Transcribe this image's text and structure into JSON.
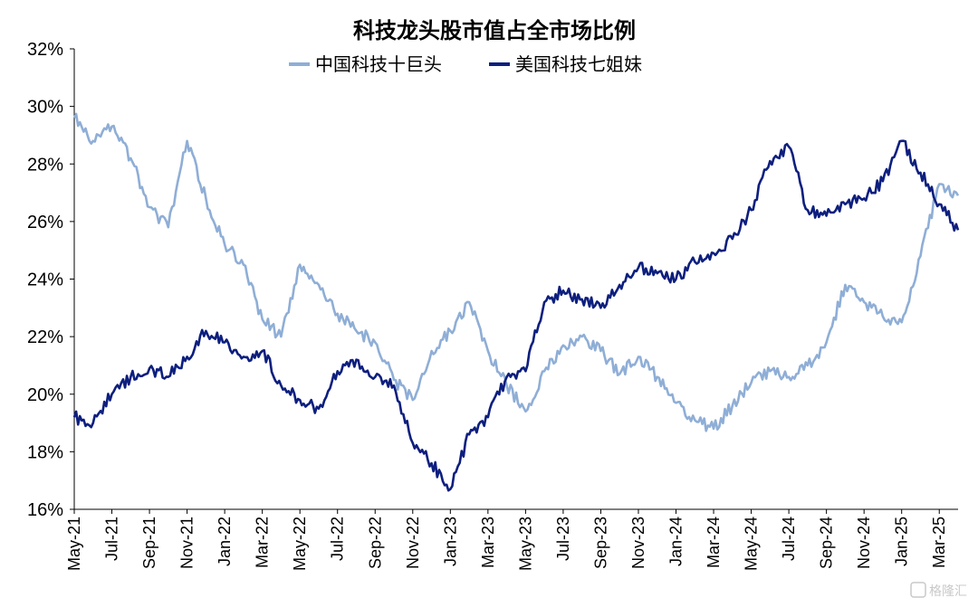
{
  "chart_data": {
    "type": "line",
    "title": "科技龙头股市值占全市场比例",
    "xlabel": "",
    "ylabel": "",
    "ylim": [
      16,
      32
    ],
    "y_ticks": [
      "16%",
      "18%",
      "20%",
      "22%",
      "24%",
      "26%",
      "28%",
      "30%",
      "32%"
    ],
    "x_ticks": [
      "May-21",
      "Jul-21",
      "Sep-21",
      "Nov-21",
      "Jan-22",
      "Mar-22",
      "May-22",
      "Jul-22",
      "Sep-22",
      "Nov-22",
      "Jan-23",
      "Mar-23",
      "May-23",
      "Jul-23",
      "Sep-23",
      "Nov-23",
      "Jan-24",
      "Mar-24",
      "May-24",
      "Jul-24",
      "Sep-24",
      "Nov-24",
      "Jan-25",
      "Mar-25"
    ],
    "x_start": "May-21",
    "x_end": "Apr-25",
    "legend_position": "top",
    "grid": false,
    "series": [
      {
        "name": "中国科技十巨头",
        "color": "#8faed6",
        "x": [
          "May-21",
          "Jun-21",
          "Jul-21",
          "Aug-21",
          "Sep-21",
          "Oct-21",
          "Nov-21",
          "Dec-21",
          "Jan-22",
          "Feb-22",
          "Mar-22",
          "Apr-22",
          "May-22",
          "Jun-22",
          "Jul-22",
          "Aug-22",
          "Sep-22",
          "Oct-22",
          "Nov-22",
          "Dec-22",
          "Jan-23",
          "Feb-23",
          "Mar-23",
          "Apr-23",
          "May-23",
          "Jun-23",
          "Jul-23",
          "Aug-23",
          "Sep-23",
          "Oct-23",
          "Nov-23",
          "Dec-23",
          "Jan-24",
          "Feb-24",
          "Mar-24",
          "Apr-24",
          "May-24",
          "Jun-24",
          "Jul-24",
          "Aug-24",
          "Sep-24",
          "Oct-24",
          "Nov-24",
          "Dec-24",
          "Jan-25",
          "Feb-25",
          "Mar-25",
          "Apr-25"
        ],
        "values": [
          29.6,
          28.8,
          29.3,
          28.2,
          26.5,
          25.8,
          28.8,
          26.8,
          25.2,
          24.5,
          22.6,
          22.0,
          24.5,
          23.8,
          22.8,
          22.2,
          21.8,
          20.5,
          19.8,
          21.5,
          22.2,
          23.2,
          21.5,
          20.3,
          19.4,
          20.8,
          21.7,
          22.0,
          21.5,
          20.7,
          21.3,
          20.6,
          19.7,
          19.1,
          18.8,
          19.6,
          20.4,
          20.8,
          20.6,
          21.0,
          21.8,
          23.8,
          23.2,
          22.7,
          22.5,
          24.8,
          27.3,
          26.9
        ]
      },
      {
        "name": "美国科技七姐妹",
        "color": "#0d1f7e",
        "x": [
          "May-21",
          "Jun-21",
          "Jul-21",
          "Aug-21",
          "Sep-21",
          "Oct-21",
          "Nov-21",
          "Dec-21",
          "Jan-22",
          "Feb-22",
          "Mar-22",
          "Apr-22",
          "May-22",
          "Jun-22",
          "Jul-22",
          "Aug-22",
          "Sep-22",
          "Oct-22",
          "Nov-22",
          "Dec-22",
          "Jan-23",
          "Feb-23",
          "Mar-23",
          "Apr-23",
          "May-23",
          "Jun-23",
          "Jul-23",
          "Aug-23",
          "Sep-23",
          "Oct-23",
          "Nov-23",
          "Dec-23",
          "Jan-24",
          "Feb-24",
          "Mar-24",
          "Apr-24",
          "May-24",
          "Jun-24",
          "Jul-24",
          "Aug-24",
          "Sep-24",
          "Oct-24",
          "Nov-24",
          "Dec-24",
          "Jan-25",
          "Feb-25",
          "Mar-25",
          "Apr-25"
        ],
        "values": [
          19.2,
          19.0,
          20.0,
          20.6,
          20.9,
          20.6,
          21.3,
          22.2,
          21.8,
          21.3,
          21.5,
          20.3,
          19.8,
          19.5,
          20.8,
          21.2,
          20.6,
          20.3,
          18.3,
          17.6,
          16.7,
          18.6,
          19.2,
          20.6,
          20.8,
          23.2,
          23.6,
          23.3,
          23.0,
          23.8,
          24.4,
          24.2,
          24.0,
          24.6,
          24.9,
          25.4,
          26.4,
          28.1,
          28.6,
          26.4,
          26.2,
          26.6,
          26.8,
          27.4,
          28.8,
          27.7,
          26.6,
          25.7
        ]
      }
    ]
  },
  "watermark": "格隆汇"
}
